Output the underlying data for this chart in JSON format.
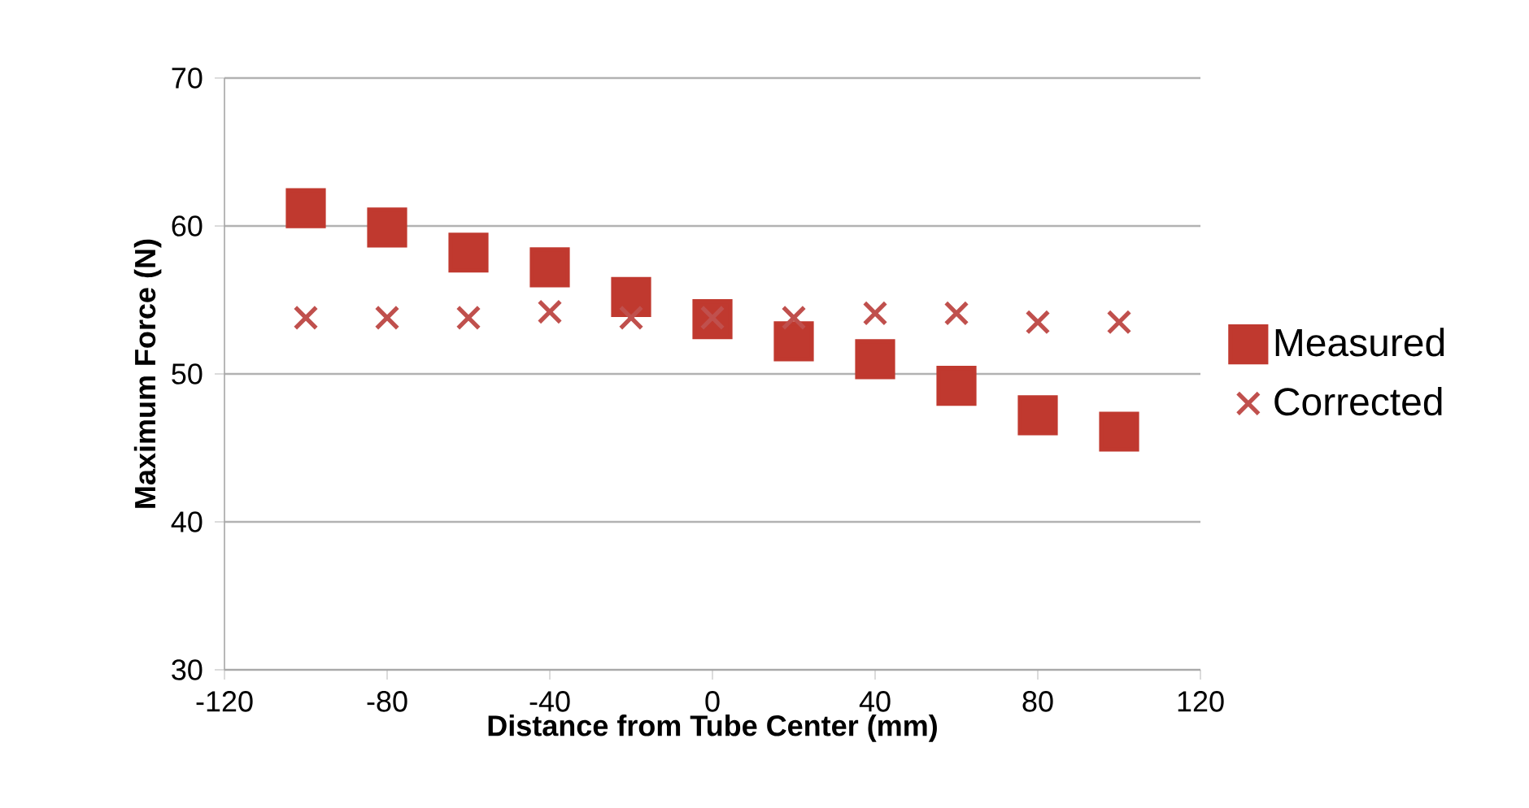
{
  "chart_data": {
    "type": "scatter",
    "xlabel": "Distance from Tube Center (mm)",
    "ylabel": "Maximum Force (N)",
    "x": [
      -100,
      -80,
      -60,
      -40,
      -20,
      0,
      20,
      40,
      60,
      80,
      100
    ],
    "series": [
      {
        "name": "Measured",
        "color": "#c0392f",
        "marker": "square",
        "values": [
          61.2,
          59.9,
          58.2,
          57.2,
          55.2,
          53.7,
          52.2,
          51.0,
          49.2,
          47.2,
          46.1
        ]
      },
      {
        "name": "Corrected",
        "color": "#c0504d",
        "marker": "cross",
        "values": [
          53.8,
          53.8,
          53.8,
          54.2,
          53.8,
          53.8,
          53.8,
          54.1,
          54.1,
          53.5,
          53.5
        ]
      }
    ],
    "xlim": [
      -120,
      120
    ],
    "xticks": [
      -120,
      -80,
      -40,
      0,
      40,
      80,
      120
    ],
    "ylim": [
      30,
      70
    ],
    "yticks": [
      30,
      40,
      50,
      60,
      70
    ],
    "grid": "y",
    "legend": "right"
  }
}
